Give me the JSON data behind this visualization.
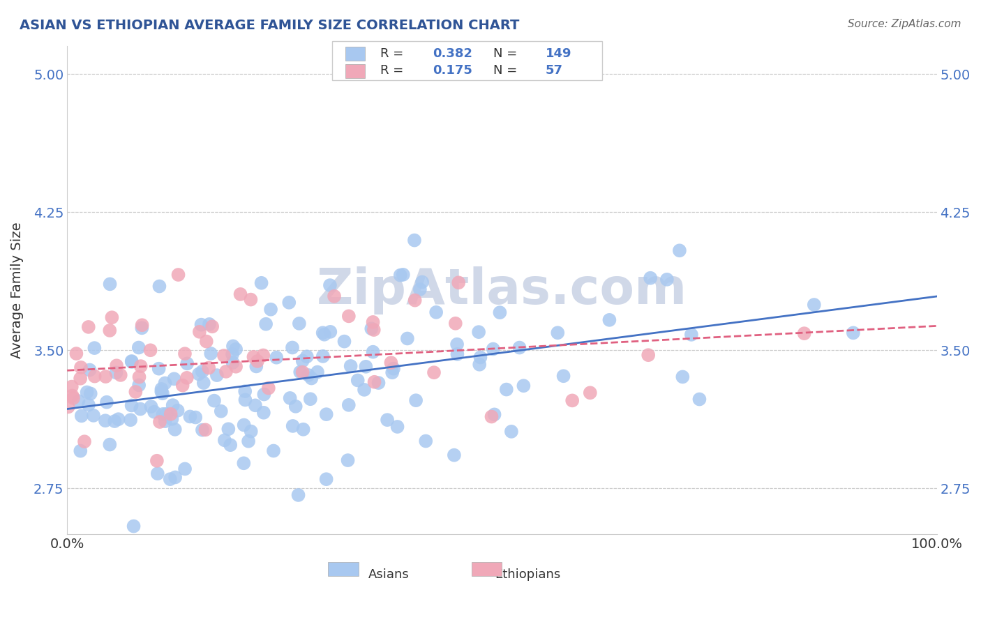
{
  "title": "ASIAN VS ETHIOPIAN AVERAGE FAMILY SIZE CORRELATION CHART",
  "source": "Source: ZipAtlas.com",
  "xlabel": "",
  "ylabel": "Average Family Size",
  "xlim": [
    0.0,
    1.0
  ],
  "ylim": [
    2.5,
    5.15
  ],
  "yticks": [
    2.75,
    3.5,
    4.25,
    5.0
  ],
  "ytick_labels": [
    "2.75",
    "3.50",
    "4.25",
    "5.00"
  ],
  "xtick_labels": [
    "0.0%",
    "100.0%"
  ],
  "legend_labels": [
    "Asians",
    "Ethiopians"
  ],
  "legend_r": [
    0.382,
    0.175
  ],
  "legend_n": [
    149,
    57
  ],
  "asian_color": "#a8c8f0",
  "ethiopian_color": "#f0a8b8",
  "asian_line_color": "#4472C4",
  "ethiopian_line_color": "#E06080",
  "title_color": "#2F5496",
  "axis_color": "#808080",
  "grid_color": "#CCCCCC",
  "watermark_text": "ZipAtlas.com",
  "watermark_color": "#D0D8E8",
  "asian_R": 0.382,
  "asian_N": 149,
  "ethiopian_R": 0.175,
  "ethiopian_N": 57,
  "asian_seed": 42,
  "ethiopian_seed": 7
}
